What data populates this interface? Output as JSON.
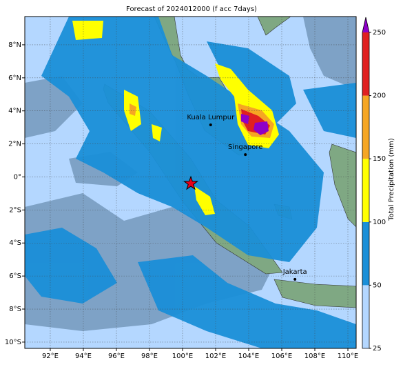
{
  "title": "Forecast of 2024012000 (f acc 7days)",
  "map": {
    "lonlim": [
      90.46,
      110.5
    ],
    "latlim": [
      -10.38,
      9.71
    ],
    "lonticks": [
      {
        "value": 92,
        "label": "92°E"
      },
      {
        "value": 94,
        "label": "94°E"
      },
      {
        "value": 96,
        "label": "96°E"
      },
      {
        "value": 98,
        "label": "98°E"
      },
      {
        "value": 100,
        "label": "100°E"
      },
      {
        "value": 102,
        "label": "102°E"
      },
      {
        "value": 104,
        "label": "104°E"
      },
      {
        "value": 106,
        "label": "106°E"
      },
      {
        "value": 108,
        "label": "108°E"
      },
      {
        "value": 110,
        "label": "110°E"
      }
    ],
    "latticks": [
      {
        "value": 8,
        "label": "8°N"
      },
      {
        "value": 6,
        "label": "6°N"
      },
      {
        "value": 4,
        "label": "4°N"
      },
      {
        "value": 2,
        "label": "2°N"
      },
      {
        "value": 0,
        "label": "0°"
      },
      {
        "value": -2,
        "label": "2°S"
      },
      {
        "value": -4,
        "label": "4°S"
      },
      {
        "value": -6,
        "label": "6°S"
      },
      {
        "value": -8,
        "label": "8°S"
      },
      {
        "value": -10,
        "label": "10°S"
      }
    ],
    "grid": true,
    "cities": [
      {
        "name": "Kuala Lumpur",
        "lon": 101.7,
        "lat": 3.15
      },
      {
        "name": "Singapore",
        "lon": 103.8,
        "lat": 1.35
      },
      {
        "name": "Jakarta",
        "lon": 106.8,
        "lat": -6.2
      }
    ],
    "star": {
      "lon": 100.5,
      "lat": -0.4,
      "color": "#e8001a"
    }
  },
  "colorbar": {
    "label": "Total Precipitation (mm)",
    "ticks": [
      25,
      50,
      100,
      150,
      200,
      250
    ],
    "colors": [
      "#b4d7ff",
      "#1a8fd8",
      "#ffff00",
      "#f5a623",
      "#e02020"
    ],
    "extend_color": "#8e00c8"
  }
}
